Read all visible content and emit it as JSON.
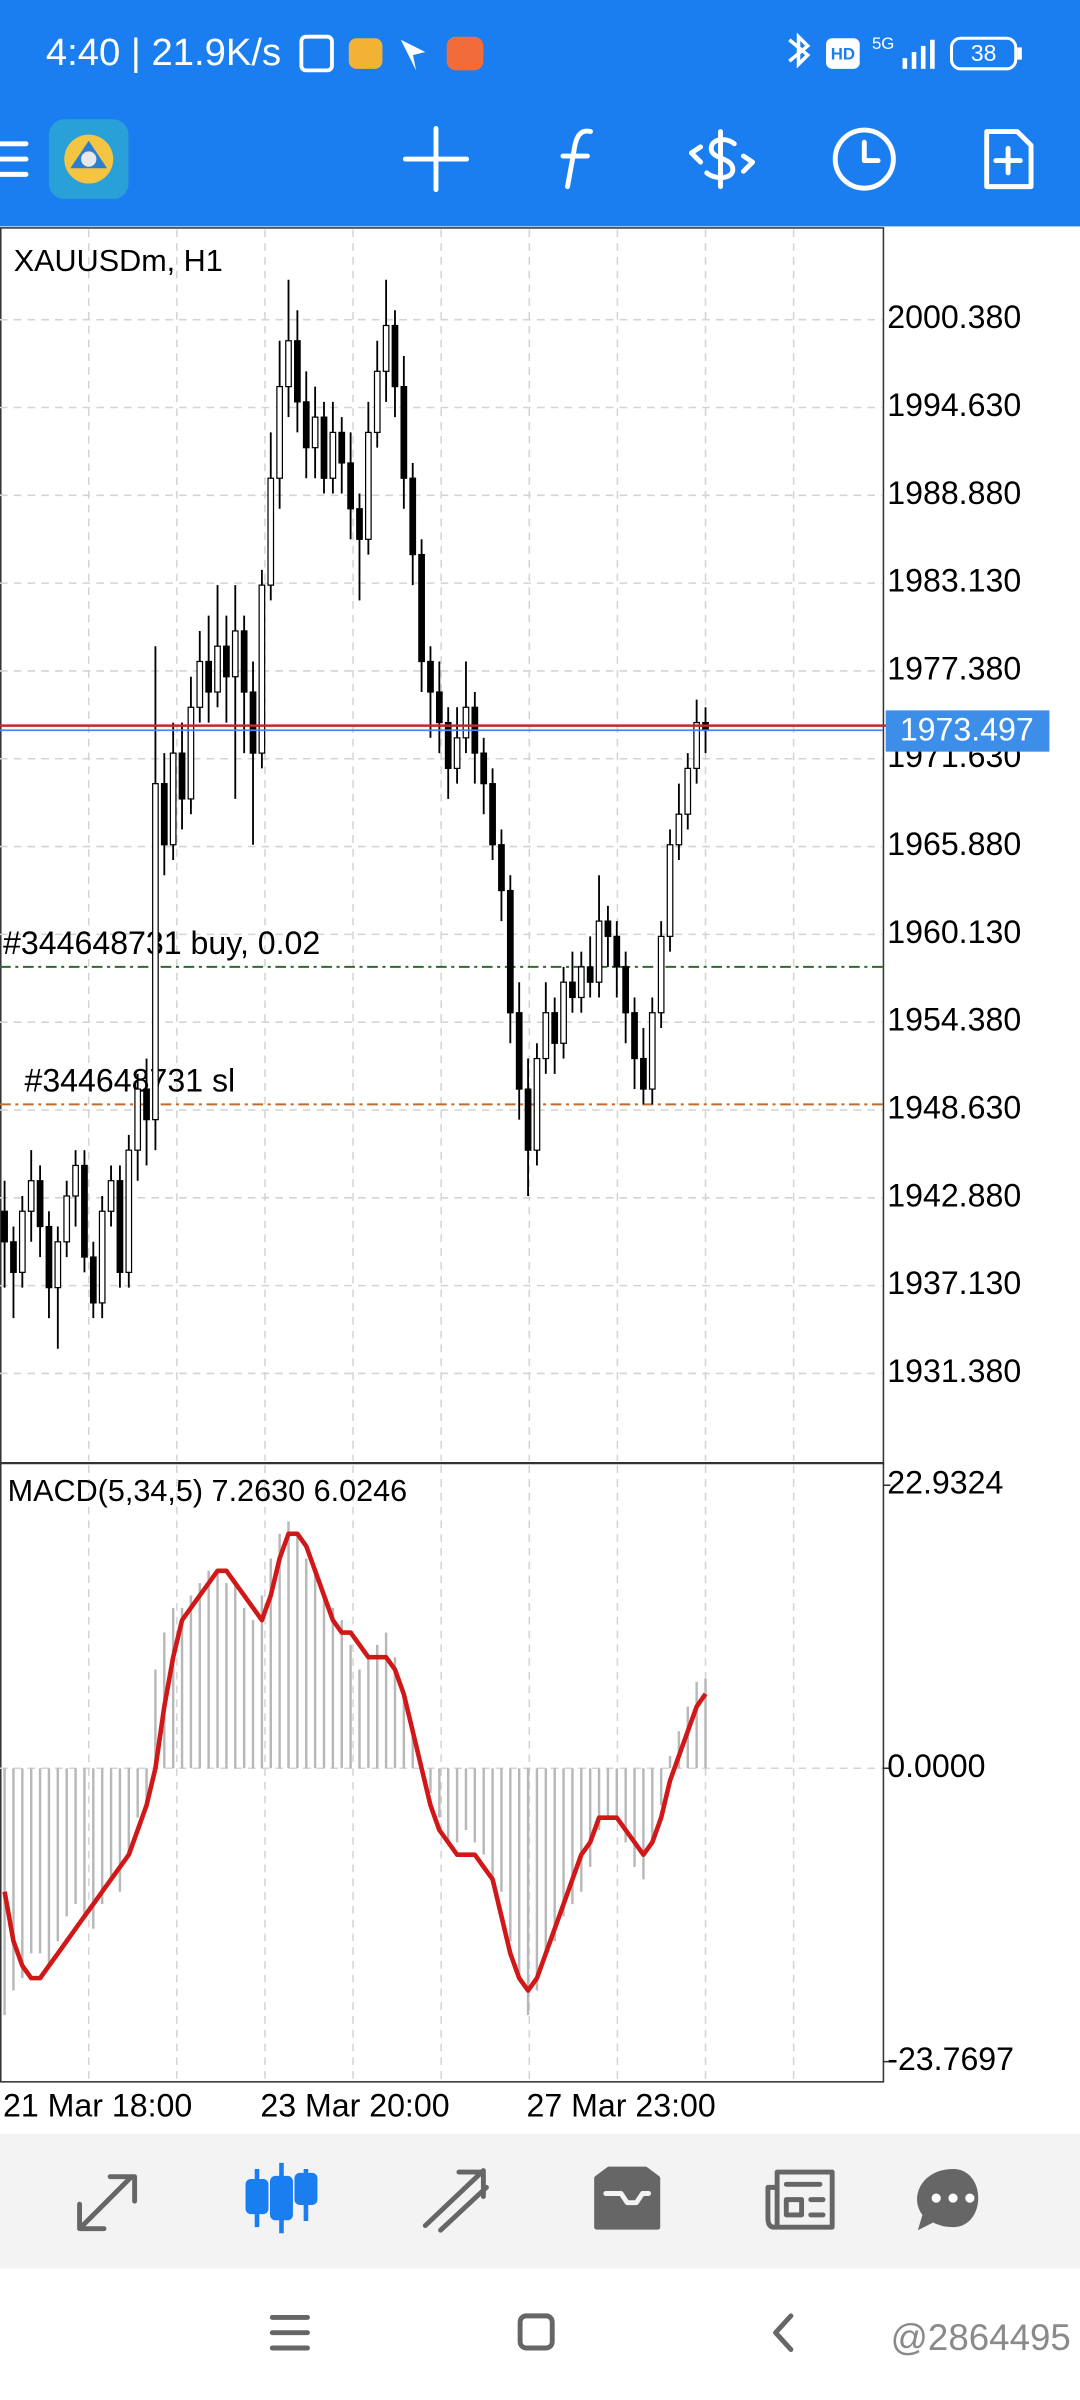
{
  "status_bar": {
    "time": "4:40 | 21.9K/s",
    "network_badge": "HD",
    "network": "5G",
    "battery": "38"
  },
  "chart_data": [
    {
      "type": "candlestick",
      "title": "XAUUSDm, H1",
      "open": [
        1942,
        1940,
        1938,
        1942,
        1944,
        1941,
        1937,
        1940,
        1943,
        1945,
        1939,
        1936,
        1942,
        1944,
        1938,
        1946,
        1950,
        1948,
        1970,
        1966,
        1972,
        1969,
        1975,
        1978,
        1976,
        1979,
        1977,
        1980,
        1976,
        1972,
        1983,
        1990,
        1996,
        1999,
        1995,
        1992,
        1994,
        1990,
        1993,
        1991,
        1988,
        1986,
        1993,
        1997,
        2000,
        1996,
        1990,
        1985,
        1978,
        1976,
        1974,
        1971,
        1973,
        1975,
        1972,
        1970,
        1966,
        1963,
        1955,
        1950,
        1946,
        1952,
        1955,
        1953,
        1957,
        1956,
        1958,
        1957,
        1961,
        1960,
        1958,
        1955,
        1952,
        1950,
        1955,
        1960,
        1966,
        1968,
        1971,
        1974
      ],
      "high": [
        1944,
        1941,
        1943,
        1946,
        1945,
        1942,
        1941,
        1944,
        1946,
        1946,
        1940,
        1943,
        1945,
        1945,
        1947,
        1951,
        1952,
        1979,
        1972,
        1974,
        1974,
        1977,
        1980,
        1981,
        1983,
        1981,
        1983,
        1981,
        1978,
        1984,
        1993,
        1999,
        2003,
        2001,
        1997,
        1996,
        1995,
        1995,
        1994,
        1993,
        1989,
        1995,
        1999,
        2003,
        2001,
        1998,
        1991,
        1986,
        1979,
        1978,
        1975,
        1975,
        1978,
        1976,
        1973,
        1971,
        1967,
        1964,
        1957,
        1952,
        1953,
        1957,
        1956,
        1958,
        1959,
        1959,
        1960,
        1964,
        1962,
        1961,
        1959,
        1956,
        1954,
        1956,
        1961,
        1967,
        1970,
        1972,
        1975.5,
        1975
      ],
      "low": [
        1937,
        1935,
        1937,
        1940,
        1939,
        1935,
        1933,
        1939,
        1941,
        1938,
        1935,
        1935,
        1941,
        1937,
        1937,
        1944,
        1945,
        1946,
        1964,
        1965,
        1967,
        1968,
        1974,
        1974,
        1975,
        1974,
        1969,
        1972,
        1966,
        1971,
        1982,
        1988,
        1994,
        1993,
        1990,
        1990,
        1989,
        1989,
        1989,
        1986,
        1982,
        1985,
        1992,
        1995,
        1994,
        1988,
        1983,
        1976,
        1973,
        1972,
        1969,
        1970,
        1972,
        1970,
        1968,
        1965,
        1961,
        1953,
        1948,
        1943,
        1945,
        1951,
        1951,
        1952,
        1955,
        1955,
        1956,
        1956,
        1958,
        1956,
        1953,
        1950,
        1949,
        1949,
        1954,
        1959,
        1965,
        1967,
        1970,
        1972
      ],
      "close": [
        1940,
        1938,
        1942,
        1944,
        1941,
        1937,
        1940,
        1943,
        1945,
        1939,
        1936,
        1942,
        1944,
        1938,
        1946,
        1950,
        1948,
        1970,
        1966,
        1972,
        1969,
        1975,
        1978,
        1976,
        1979,
        1977,
        1980,
        1976,
        1972,
        1983,
        1990,
        1996,
        1999,
        1995,
        1992,
        1994,
        1990,
        1993,
        1991,
        1988,
        1986,
        1993,
        1997,
        2000,
        1996,
        1990,
        1985,
        1978,
        1976,
        1974,
        1971,
        1973,
        1975,
        1972,
        1970,
        1966,
        1963,
        1955,
        1950,
        1946,
        1952,
        1955,
        1953,
        1957,
        1956,
        1958,
        1957,
        1961,
        1960,
        1958,
        1955,
        1952,
        1950,
        1955,
        1960,
        1966,
        1968,
        1971,
        1974,
        1973.497
      ],
      "candle_color": "#000000",
      "bull_fill": "#ffffff",
      "ylim": [
        1925.66,
        2006.29
      ],
      "yticks": [
        {
          "value": 2000.38,
          "label": "2000.380"
        },
        {
          "value": 1994.63,
          "label": "1994.630"
        },
        {
          "value": 1988.88,
          "label": "1988.880"
        },
        {
          "value": 1983.13,
          "label": "1983.130"
        },
        {
          "value": 1977.38,
          "label": "1977.380"
        },
        {
          "value": 1971.63,
          "label": "1971.630"
        },
        {
          "value": 1965.88,
          "label": "1965.880"
        },
        {
          "value": 1960.13,
          "label": "1960.130"
        },
        {
          "value": 1954.38,
          "label": "1954.380"
        },
        {
          "value": 1948.63,
          "label": "1948.630"
        },
        {
          "value": 1942.88,
          "label": "1942.880"
        },
        {
          "value": 1937.13,
          "label": "1937.130"
        },
        {
          "value": 1931.38,
          "label": "1931.380"
        }
      ],
      "grid": true,
      "bid": 1973.497,
      "bid_color": "#3d8ee8",
      "ask": 1973.8,
      "ask_color": "#c0282d",
      "order_lines": [
        {
          "label": "#344648731 buy, 0.02",
          "value": 1958.0,
          "color": "#2e6b2e"
        },
        {
          "label": "#344648731 sl",
          "value": 1949.0,
          "color": "#c46a2a"
        }
      ]
    },
    {
      "type": "macd",
      "title": "MACD(5,34,5) 7.2630 6.0246",
      "categories": [
        "21 Mar 18:00",
        null,
        null,
        null,
        null,
        null,
        null,
        null,
        null,
        null,
        null,
        null,
        null,
        null,
        null,
        null,
        null,
        null,
        null,
        null,
        null,
        null,
        null,
        null,
        null,
        null,
        null,
        null,
        null,
        "23 Mar 20:00",
        null,
        null,
        null,
        null,
        null,
        null,
        null,
        null,
        null,
        null,
        null,
        null,
        null,
        null,
        null,
        null,
        null,
        null,
        null,
        null,
        null,
        null,
        null,
        null,
        null,
        null,
        null,
        null,
        null,
        "27 Mar 23:00",
        null,
        null,
        null,
        null,
        null,
        null,
        null,
        null,
        null,
        null,
        null,
        null,
        null,
        null,
        null,
        null,
        null,
        null,
        null,
        null
      ],
      "histogram": [
        -20,
        -18,
        -17,
        -15,
        -15,
        -16,
        -14,
        -12,
        -11,
        -12,
        -13,
        -11,
        -9,
        -10,
        -7,
        -4,
        -3,
        8,
        11,
        13,
        13,
        14,
        15,
        16,
        16,
        15,
        15,
        13,
        12,
        14,
        17,
        19,
        20,
        19,
        17,
        16,
        14,
        13,
        12,
        10,
        8,
        9,
        10,
        11,
        9,
        6,
        3,
        0,
        -2,
        -4,
        -6,
        -6,
        -5,
        -6,
        -7,
        -9,
        -10,
        -14,
        -17,
        -20,
        -18,
        -15,
        -14,
        -12,
        -11,
        -10,
        -8,
        -5,
        -4,
        -4,
        -6,
        -8,
        -9,
        -6,
        -3,
        1,
        3,
        5,
        7,
        7.263
      ],
      "signal": [
        -10,
        -14,
        -16,
        -17,
        -17,
        -16,
        -15,
        -14,
        -13,
        -12,
        -11,
        -10,
        -9,
        -8,
        -7,
        -5,
        -3,
        0,
        5,
        9,
        12,
        13,
        14,
        15,
        16,
        16,
        15,
        14,
        13,
        12,
        14,
        17,
        19,
        19,
        18,
        16,
        14,
        12,
        11,
        11,
        10,
        9,
        9,
        9,
        8,
        6,
        3,
        0,
        -3,
        -5,
        -6,
        -7,
        -7,
        -7,
        -8,
        -9,
        -12,
        -15,
        -17,
        -18,
        -17,
        -15,
        -13,
        -11,
        -9,
        -7,
        -6,
        -4,
        -4,
        -4,
        -5,
        -6,
        -7,
        -6,
        -4,
        -1,
        1,
        3,
        5,
        6.0246
      ],
      "histogram_color": "#b8b8b8",
      "signal_color": "#d01818",
      "ylim": [
        -25.28,
        24.54
      ],
      "yticks": [
        22.9324,
        {
          "value": 0,
          "label": "0.0000"
        },
        -23.7697
      ]
    }
  ],
  "watermark": "@2864495"
}
